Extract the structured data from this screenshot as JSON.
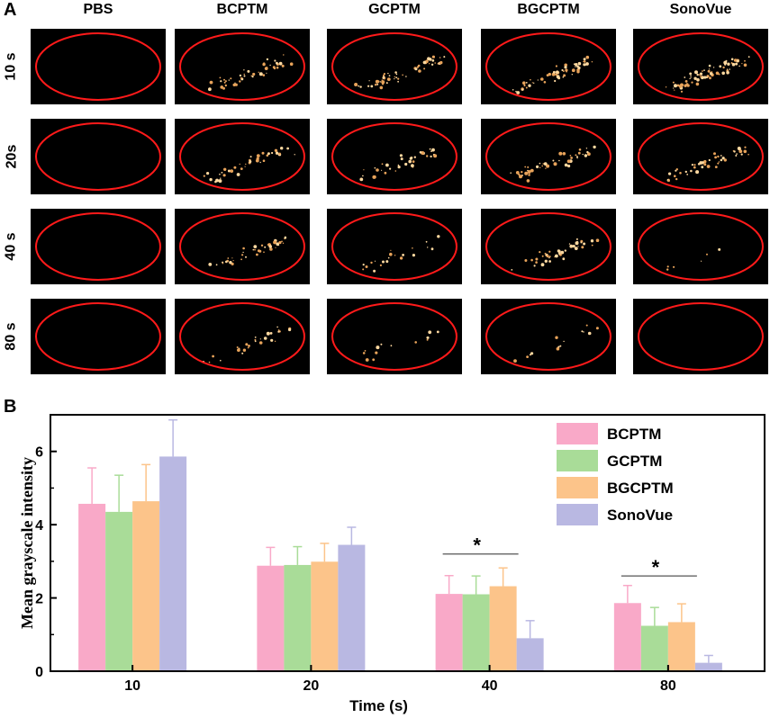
{
  "panel_a": {
    "letter": "A",
    "columns": [
      "PBS",
      "BCPTM",
      "GCPTM",
      "BGCPTM",
      "SonoVue"
    ],
    "rows": [
      "10 s",
      "20s",
      "40 s",
      "80 s"
    ]
  },
  "panel_b": {
    "letter": "B"
  },
  "chart_data": {
    "type": "bar",
    "title": "",
    "xlabel": "Time (s)",
    "ylabel": "Mean grayscale intensity",
    "categories": [
      "10",
      "20",
      "40",
      "80"
    ],
    "ylim": [
      0,
      7
    ],
    "yticks": [
      0,
      2,
      4,
      6
    ],
    "legend_position": "top-right",
    "series": [
      {
        "name": "BCPTM",
        "color": "#f9a9c8",
        "values": [
          4.57,
          2.88,
          2.11,
          1.86
        ],
        "errors": [
          0.98,
          0.5,
          0.5,
          0.48
        ]
      },
      {
        "name": "GCPTM",
        "color": "#a9dc98",
        "values": [
          4.35,
          2.9,
          2.1,
          1.24
        ],
        "errors": [
          1.0,
          0.5,
          0.5,
          0.5
        ]
      },
      {
        "name": "BGCPTM",
        "color": "#fcc48a",
        "values": [
          4.64,
          2.99,
          2.32,
          1.34
        ],
        "errors": [
          1.0,
          0.5,
          0.5,
          0.5
        ]
      },
      {
        "name": "SonoVue",
        "color": "#b9b8e2",
        "values": [
          5.86,
          3.45,
          0.9,
          0.23
        ],
        "errors": [
          1.0,
          0.48,
          0.48,
          0.2
        ]
      }
    ],
    "annotations": [
      {
        "text": "*",
        "category": "40",
        "y": 3.2
      },
      {
        "text": "*",
        "category": "80",
        "y": 2.6
      }
    ]
  }
}
